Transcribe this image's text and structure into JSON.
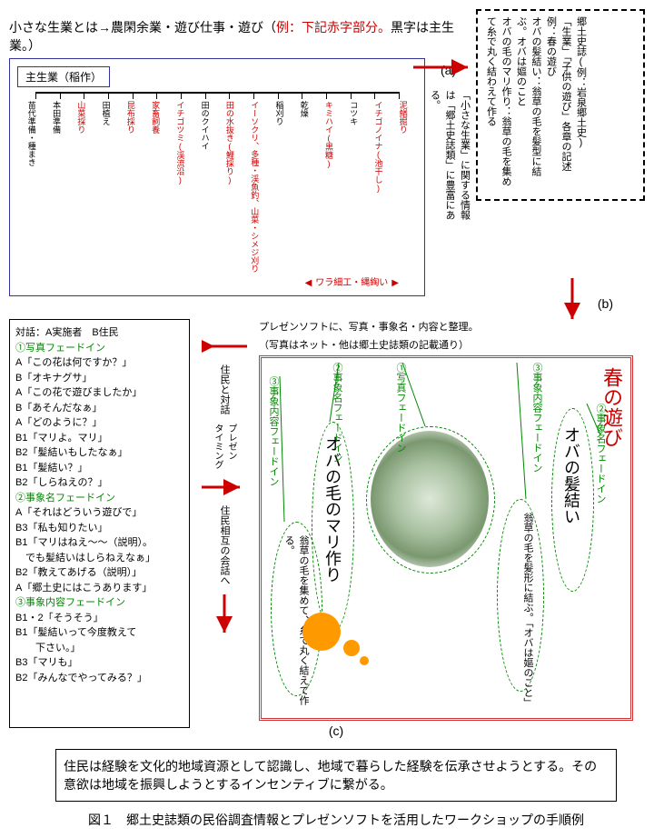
{
  "boxA": {
    "l1": "郷土史誌(例：岩泉郷土史)",
    "l2": "「生業」「子供の遊び」各章の記述",
    "l3": "例：春の遊び",
    "l4": "オバの髪結い：翁草の毛を髪型に結ぶ。オバは嫗のこと",
    "l5": "オバの毛のマリ作り：翁草の毛を集めて糸で丸く結わえて作る"
  },
  "heading": {
    "main": "小さな生業とは→農閑余業・遊び仕事・遊び（",
    "red": "例：下記赤字部分。",
    "tail": "黒字は主生業。）"
  },
  "timeline": {
    "title": "主生業（稲作）",
    "items": [
      {
        "t": "苗代準備・種まき",
        "c": "#000"
      },
      {
        "t": "本田準備",
        "c": "#000"
      },
      {
        "t": "山菜採り",
        "c": "#c00"
      },
      {
        "t": "田植え",
        "c": "#000"
      },
      {
        "t": "昆布採り",
        "c": "#c00"
      },
      {
        "t": "家畜飼養",
        "c": "#c00"
      },
      {
        "t": "イチゴツミ(渓流沿)",
        "c": "#c00"
      },
      {
        "t": "田のクイハイ",
        "c": "#000"
      },
      {
        "t": "田の水抜き(鯉採り)",
        "c": "#c00"
      },
      {
        "t": "イーソクリ、多種・渓魚釣、山菜・シメジ刈り",
        "c": "#c00"
      },
      {
        "t": "稲刈り",
        "c": "#000"
      },
      {
        "t": "乾燥",
        "c": "#000"
      },
      {
        "t": "キミハイ(黒糖)",
        "c": "#c00"
      },
      {
        "t": "コツキ",
        "c": "#000"
      },
      {
        "t": "イチゴノイナ(池干し)",
        "c": "#c00"
      },
      {
        "t": "泥鰌掘り",
        "c": "#c00"
      }
    ],
    "wara": "ワラ細工・縄綯い"
  },
  "sideNote": {
    "l": "「小さな生業」に関する情報は「郷土史誌類」に豊富にある。"
  },
  "labels": {
    "a": "(a)",
    "b": "(b)",
    "c": "(c)"
  },
  "dialog": {
    "head": "対話：A実施者　B住民",
    "s1": "①写真フェードイン",
    "d1": [
      "A「この花は何ですか？」",
      "B「オキナグサ」",
      "A「この花で遊びましたか」",
      "B「あそんだなぁ」",
      "A「どのように？」",
      "B1「マリよ。マリ」",
      "B2「髪結いもしたなぁ」",
      "B1「髪結い？」",
      "B2「しらねえの？」"
    ],
    "s2": "②事象名フェードイン",
    "d2": [
      "A「それはどういう遊びで」",
      "B3「私も知りたい」",
      "B1「マリはねえ～～（説明）。",
      "　でも髪結いはしらねえなぁ」",
      "B2「教えてあげる（説明）」",
      "A「郷土史にはこうあります」"
    ],
    "s3": "③事象内容フェードイン",
    "d3": [
      "B1・2「そうそう」",
      "B1「髪結いって今度教えて",
      "　　下さい。」",
      "B3「マリも」",
      "B2「みんなでやってみる？」"
    ]
  },
  "centerLabels": {
    "a": "住民と対話",
    "b": "プレゼン\nタイミング",
    "c": "住民相互の会話へ"
  },
  "presen": {
    "note1": "プレゼンソフトに、写真・事象名・内容と整理。",
    "note2": "（写真はネット・他は郷土史誌類の記載通り）",
    "title": "春の遊び",
    "e1": {
      "label": "①写真フェードイン"
    },
    "e2a": {
      "label": "②事象名フェードイン",
      "text": "オバの毛のマリ作り"
    },
    "e2b": {
      "label": "②事象名フェードイン",
      "text": "オバの髪結い"
    },
    "e3a": {
      "label": "③事象内容フェードイン",
      "text": "翁草の毛を集めて、糸で丸く結えて作る。"
    },
    "e3b": {
      "label": "③事象内容フェードイン",
      "text": "翁草の毛を髪形に結ぶ。「オバは嫗のこと」"
    }
  },
  "bottom": "住民は経験を文化的地域資源として認識し、地域で暮らした経験を伝承させようとする。その意欲は地域を振興しようとするインセンティブに繋がる。",
  "figcap": "図１　郷土史誌類の民俗調査情報とプレゼンソフトを活用したワークショップの手順例",
  "colors": {
    "red": "#c00",
    "green": "#080",
    "orange": "#f90",
    "blue": "#339"
  }
}
